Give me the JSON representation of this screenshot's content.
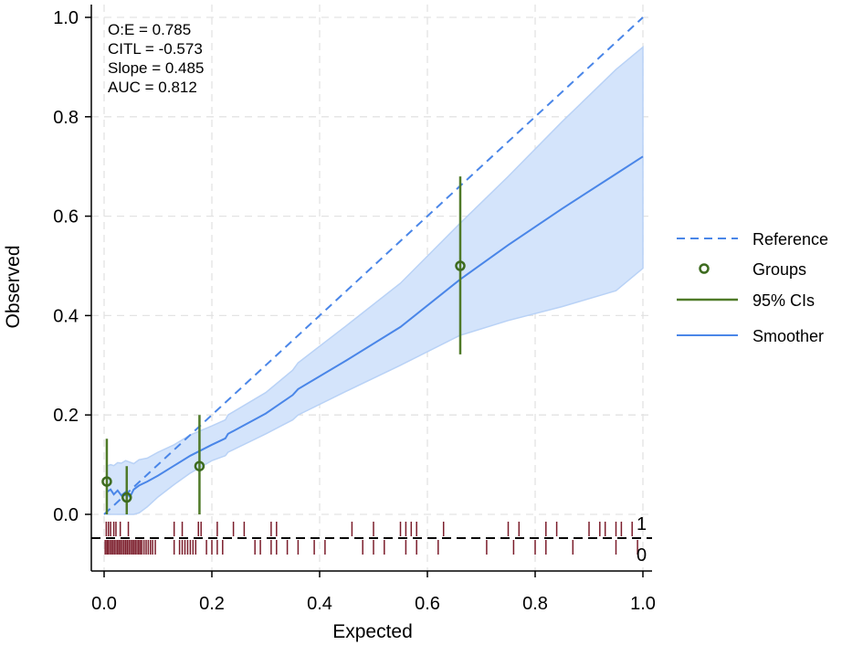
{
  "chart_data": {
    "type": "line",
    "xlabel": "Expected",
    "ylabel": "Observed",
    "xlim": [
      0,
      1
    ],
    "ylim": [
      0,
      1
    ],
    "x_ticks": [
      "0.0",
      "0.2",
      "0.4",
      "0.6",
      "0.8",
      "1.0"
    ],
    "y_ticks": [
      "0.0",
      "0.2",
      "0.4",
      "0.6",
      "0.8",
      "1.0"
    ],
    "grid": true,
    "legend_position": "right",
    "stats": [
      "O:E = 0.785",
      "CITL = -0.573",
      "Slope = 0.485",
      "AUC = 0.812"
    ],
    "legend": [
      {
        "label": "Reference",
        "kind": "dashed-line",
        "color": "#4a86e8"
      },
      {
        "label": "Groups",
        "kind": "circle",
        "color": "#3d6b1f"
      },
      {
        "label": "95% CIs",
        "kind": "line",
        "color": "#4f7a28"
      },
      {
        "label": "Smoother",
        "kind": "line",
        "color": "#4a86e8"
      }
    ],
    "reference": {
      "x": [
        0,
        1
      ],
      "y": [
        0,
        1
      ]
    },
    "groups": [
      {
        "x": 0.005,
        "y": 0.066,
        "ci_low": 0.0,
        "ci_high": 0.152
      },
      {
        "x": 0.042,
        "y": 0.034,
        "ci_low": 0.0,
        "ci_high": 0.097
      },
      {
        "x": 0.177,
        "y": 0.097,
        "ci_low": 0.0,
        "ci_high": 0.2
      },
      {
        "x": 0.661,
        "y": 0.5,
        "ci_low": 0.322,
        "ci_high": 0.68
      }
    ],
    "smoother": {
      "x": [
        0.005,
        0.012,
        0.018,
        0.025,
        0.032,
        0.04,
        0.048,
        0.055,
        0.065,
        0.08,
        0.1,
        0.13,
        0.16,
        0.2,
        0.225,
        0.23,
        0.3,
        0.35,
        0.36,
        0.45,
        0.55,
        0.66,
        0.75,
        0.85,
        0.95,
        1.0
      ],
      "y": [
        0.045,
        0.05,
        0.04,
        0.048,
        0.038,
        0.045,
        0.035,
        0.05,
        0.058,
        0.066,
        0.078,
        0.098,
        0.118,
        0.14,
        0.153,
        0.162,
        0.203,
        0.24,
        0.252,
        0.31,
        0.377,
        0.472,
        0.542,
        0.615,
        0.685,
        0.72
      ],
      "lower": [
        0.0,
        0.0,
        0.0,
        0.0,
        0.0,
        0.0,
        0.0,
        0.0,
        0.003,
        0.015,
        0.035,
        0.06,
        0.083,
        0.108,
        0.118,
        0.125,
        0.162,
        0.19,
        0.2,
        0.248,
        0.3,
        0.36,
        0.39,
        0.418,
        0.45,
        0.495
      ],
      "upper": [
        0.097,
        0.1,
        0.098,
        0.104,
        0.103,
        0.108,
        0.105,
        0.102,
        0.11,
        0.113,
        0.125,
        0.14,
        0.16,
        0.178,
        0.19,
        0.2,
        0.245,
        0.29,
        0.305,
        0.38,
        0.465,
        0.585,
        0.68,
        0.79,
        0.895,
        0.94
      ]
    },
    "rug": {
      "labels": [
        "1",
        "0"
      ],
      "color": "#7b1d2b",
      "events": [
        0.004,
        0.008,
        0.012,
        0.018,
        0.022,
        0.03,
        0.045,
        0.13,
        0.145,
        0.175,
        0.18,
        0.21,
        0.24,
        0.26,
        0.31,
        0.32,
        0.46,
        0.5,
        0.55,
        0.56,
        0.57,
        0.58,
        0.63,
        0.75,
        0.77,
        0.82,
        0.84,
        0.9,
        0.92,
        0.93,
        0.95,
        0.96,
        0.98
      ],
      "nonevents": [
        0.002,
        0.005,
        0.007,
        0.01,
        0.013,
        0.016,
        0.019,
        0.022,
        0.025,
        0.028,
        0.031,
        0.034,
        0.037,
        0.04,
        0.043,
        0.046,
        0.049,
        0.052,
        0.055,
        0.058,
        0.061,
        0.064,
        0.067,
        0.07,
        0.074,
        0.078,
        0.082,
        0.086,
        0.09,
        0.095,
        0.13,
        0.14,
        0.145,
        0.15,
        0.155,
        0.16,
        0.165,
        0.17,
        0.19,
        0.2,
        0.21,
        0.22,
        0.28,
        0.29,
        0.31,
        0.32,
        0.34,
        0.36,
        0.39,
        0.41,
        0.48,
        0.5,
        0.52,
        0.56,
        0.58,
        0.62,
        0.71,
        0.76,
        0.8,
        0.82,
        0.87,
        0.95,
        0.99
      ]
    }
  }
}
